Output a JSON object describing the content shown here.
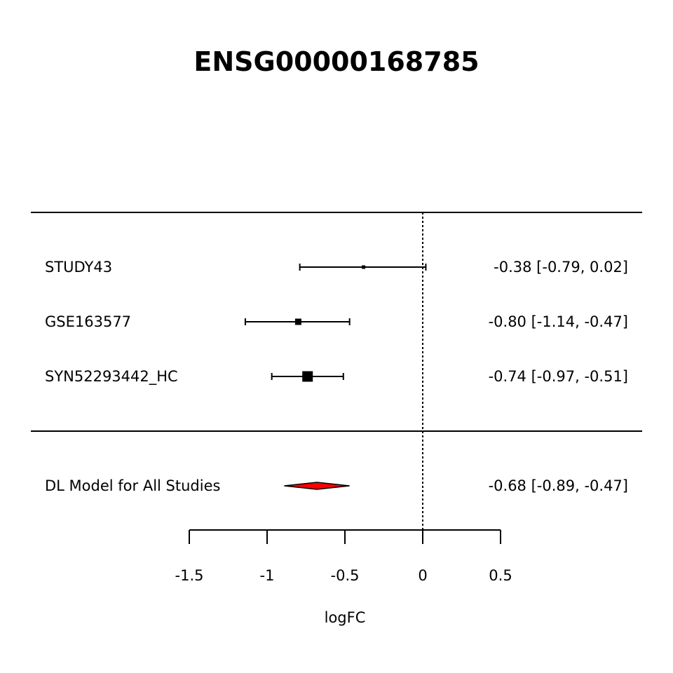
{
  "chart_data": {
    "type": "forest",
    "title": "ENSG00000168785",
    "xlabel": "logFC",
    "xlim": [
      -1.5,
      0.5
    ],
    "ticks": [
      -1.5,
      -1,
      -0.5,
      0,
      0.5
    ],
    "tick_labels": [
      "-1.5",
      "-1",
      "-0.5",
      "0",
      "0.5"
    ],
    "reference_line": 0,
    "studies": [
      {
        "label": "STUDY43",
        "estimate": -0.38,
        "ci_low": -0.79,
        "ci_high": 0.02,
        "ci_text": "-0.38 [-0.79,  0.02]"
      },
      {
        "label": "GSE163577",
        "estimate": -0.8,
        "ci_low": -1.14,
        "ci_high": -0.47,
        "ci_text": "-0.80 [-1.14, -0.47]"
      },
      {
        "label": "SYN52293442_HC",
        "estimate": -0.74,
        "ci_low": -0.97,
        "ci_high": -0.51,
        "ci_text": "-0.74 [-0.97, -0.51]"
      }
    ],
    "summary": {
      "label": "DL Model for All Studies",
      "estimate": -0.68,
      "ci_low": -0.89,
      "ci_high": -0.47,
      "ci_text": "-0.68 [-0.89, -0.47]",
      "color": "#ff0000"
    }
  }
}
